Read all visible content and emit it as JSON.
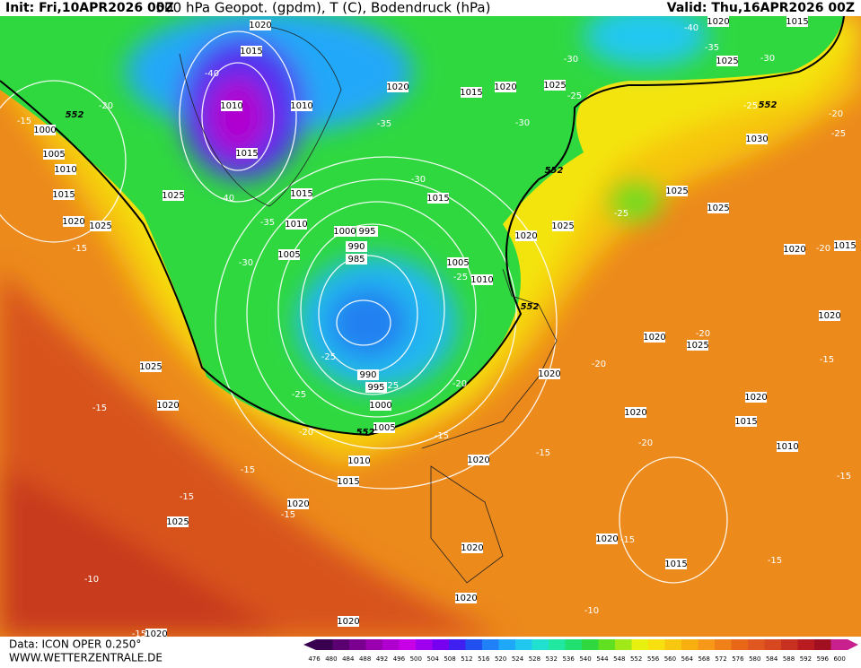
{
  "header": {
    "init": "Init: Fri,10APR2026 00Z",
    "title": "500 hPa Geopot. (gpdm), T (C), Bodendruck (hPa)",
    "valid": "Valid: Thu,16APR2026 00Z"
  },
  "footer": {
    "data": "Data: ICON OPER 0.250°",
    "site": "WWW.WETTERZENTRALE.DE"
  },
  "colorbar": {
    "ticks": [
      476,
      480,
      484,
      488,
      492,
      496,
      500,
      504,
      508,
      512,
      516,
      520,
      524,
      528,
      532,
      536,
      540,
      544,
      548,
      552,
      556,
      560,
      564,
      568,
      572,
      576,
      580,
      584,
      588,
      592,
      596,
      600
    ],
    "colors": [
      "#3a0050",
      "#5a0070",
      "#7a0090",
      "#9a00b0",
      "#b000d0",
      "#c800e8",
      "#a000f0",
      "#7800f0",
      "#4020f0",
      "#2050f0",
      "#2080f8",
      "#20a8f8",
      "#20c8f0",
      "#20e0d0",
      "#20e8a0",
      "#20e070",
      "#30d840",
      "#60e020",
      "#a0e818",
      "#e8f010",
      "#f8e010",
      "#f8c810",
      "#f8b010",
      "#f89818",
      "#f08018",
      "#e86818",
      "#e05820",
      "#d84820",
      "#c83020",
      "#b81c20",
      "#a01020",
      "#c8208c"
    ]
  },
  "pressure_labels": [
    "1020",
    "1015",
    "1010",
    "1010",
    "1015",
    "1025",
    "1015",
    "1010",
    "1005",
    "1000",
    "995",
    "990",
    "985",
    "1005",
    "1010",
    "1020",
    "1015",
    "1020",
    "1025",
    "1015",
    "1020",
    "1025",
    "1025",
    "1025",
    "1030",
    "1025",
    "1020",
    "1015",
    "1000",
    "1005",
    "1010",
    "1015",
    "1020",
    "1025",
    "1025",
    "1020",
    "1000",
    "1005",
    "990",
    "995",
    "1010",
    "1015",
    "1020",
    "1020",
    "1025",
    "1020",
    "1020",
    "1025",
    "1020",
    "1020",
    "1015",
    "1010",
    "1020",
    "1015",
    "1020",
    "1020",
    "1015",
    "1020",
    "1020",
    "1020",
    "1020"
  ],
  "temperature_labels": [
    "-40",
    "-40",
    "-35",
    "-30",
    "-35",
    "-30",
    "-30",
    "-30",
    "-25",
    "-35",
    "-40",
    "-30",
    "-25",
    "-20",
    "-25",
    "-20",
    "-25",
    "-20",
    "-20",
    "-20",
    "-25",
    "-25",
    "-25",
    "-25",
    "-20",
    "-15",
    "-15",
    "-20",
    "-15",
    "-15",
    "-15",
    "-15",
    "-15",
    "-15",
    "-15",
    "-15",
    "-15",
    "-15",
    "-20",
    "-10",
    "-10",
    "-15"
  ],
  "geopotential_labels": [
    "552",
    "552",
    "552",
    "552",
    "552"
  ]
}
